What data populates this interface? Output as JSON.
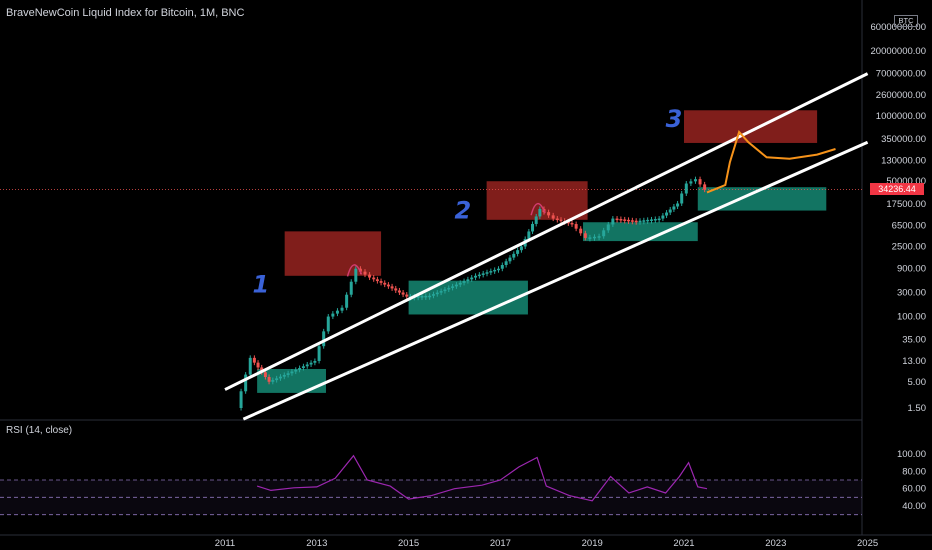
{
  "chart": {
    "title": "BraveNewCoin Liquid Index for Bitcoin, 1M, BNC",
    "currency_badge": "BTC",
    "last_price_label": "34236.44",
    "rsi_title": "RSI (14, close)"
  },
  "colors": {
    "background": "#000000",
    "up_candle": "#26a69a",
    "down_candle": "#ef5350",
    "channel": "#ffffff",
    "red_zone": "#b22a25",
    "green_zone": "#1aa58c",
    "projection": "#f7931a",
    "rsi_line": "#9c27b0",
    "wave_labels": "#3a62d8"
  },
  "chart_data": [
    {
      "type": "candlestick",
      "title": "BraveNewCoin Liquid Index for Bitcoin, 1M, BNC",
      "y_scale": "log",
      "y_ticks": [
        "1800000000.00",
        "60000000.00",
        "20000000.00",
        "7000000.00",
        "2600000.00",
        "1000000.00",
        "350000.00",
        "130000.00",
        "50000.00",
        "17500.00",
        "6500.00",
        "2500.00",
        "900.00",
        "300.00",
        "100.00",
        "35.00",
        "13.00",
        "5.00",
        "1.50"
      ],
      "x_ticks": [
        "2011",
        "2013",
        "2015",
        "2017",
        "2019",
        "2021",
        "2023",
        "2025"
      ],
      "last_price": 34236.44,
      "series": [
        {
          "x": [
            2011.3,
            2011.6,
            2012.0,
            2012.5,
            2013.0,
            2013.3,
            2013.6,
            2013.9,
            2014.2,
            2014.6,
            2015.0,
            2015.5,
            2016.0,
            2016.5,
            2017.0,
            2017.5,
            2017.9,
            2018.2,
            2018.6,
            2018.9,
            2019.2,
            2019.5,
            2020.0,
            2020.5,
            2020.9,
            2021.1,
            2021.3,
            2021.5
          ],
          "y": [
            1.5,
            15,
            5,
            8,
            13,
            100,
            150,
            900,
            600,
            400,
            250,
            260,
            400,
            650,
            900,
            2500,
            14000,
            9000,
            7000,
            3700,
            4000,
            9000,
            8000,
            9000,
            18000,
            45000,
            55000,
            34000
          ]
        }
      ],
      "annotations": {
        "wave_labels": [
          "1",
          "2",
          "3"
        ],
        "red_zones": [
          {
            "x": [
              2012.3,
              2014.4
            ],
            "y": [
              650,
              5000
            ]
          },
          {
            "x": [
              2016.7,
              2018.9
            ],
            "y": [
              8500,
              50000
            ]
          },
          {
            "x": [
              2021.0,
              2023.9
            ],
            "y": [
              290000,
              1300000
            ]
          }
        ],
        "green_zones": [
          {
            "x": [
              2011.7,
              2013.2
            ],
            "y": [
              3,
              9
            ]
          },
          {
            "x": [
              2015.0,
              2017.6
            ],
            "y": [
              110,
              520
            ]
          },
          {
            "x": [
              2018.8,
              2021.3
            ],
            "y": [
              3200,
              7600
            ]
          },
          {
            "x": [
              2021.3,
              2024.1
            ],
            "y": [
              13000,
              38000
            ]
          }
        ]
      }
    },
    {
      "type": "line",
      "title": "RSI (14, close)",
      "y_ticks": [
        "100.00",
        "80.00",
        "60.00",
        "40.00"
      ],
      "bands": [
        30,
        50,
        70
      ],
      "series": [
        {
          "x": [
            2011.7,
            2012.0,
            2012.5,
            2013.0,
            2013.4,
            2013.8,
            2014.1,
            2014.6,
            2015.0,
            2015.5,
            2016.0,
            2016.6,
            2017.0,
            2017.4,
            2017.8,
            2018.0,
            2018.5,
            2019.0,
            2019.4,
            2019.8,
            2020.2,
            2020.6,
            2020.9,
            2021.1,
            2021.3,
            2021.5
          ],
          "y": [
            63,
            58,
            61,
            62,
            72,
            98,
            70,
            63,
            48,
            52,
            60,
            64,
            70,
            85,
            96,
            63,
            52,
            46,
            74,
            55,
            62,
            55,
            74,
            90,
            62,
            60
          ]
        }
      ]
    }
  ]
}
